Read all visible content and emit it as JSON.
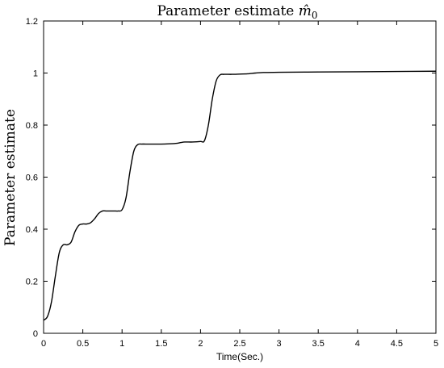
{
  "chart_data": {
    "type": "line",
    "title_main": "Parameter estimate ",
    "title_symbol": "m̂",
    "title_subscript": "0",
    "xlabel": "Time(Sec.)",
    "ylabel": "Parameter estimate",
    "xlim": [
      0,
      5
    ],
    "ylim": [
      0,
      1.2
    ],
    "xticks": [
      "0",
      "0.5",
      "1",
      "1.5",
      "2",
      "2.5",
      "3",
      "3.5",
      "4",
      "4.5",
      "5"
    ],
    "yticks": [
      "0",
      "0.2",
      "0.4",
      "0.6",
      "0.8",
      "1",
      "1.2"
    ],
    "grid": false,
    "series": [
      {
        "color": "#000000",
        "x": [
          0,
          0.05,
          0.1,
          0.15,
          0.2,
          0.25,
          0.3,
          0.35,
          0.4,
          0.45,
          0.5,
          0.55,
          0.6,
          0.65,
          0.7,
          0.75,
          0.8,
          0.85,
          0.9,
          0.95,
          1.0,
          1.05,
          1.1,
          1.15,
          1.2,
          1.25,
          1.3,
          1.4,
          1.5,
          1.6,
          1.7,
          1.75,
          1.8,
          1.9,
          2.0,
          2.05,
          2.1,
          2.15,
          2.2,
          2.25,
          2.3,
          2.4,
          2.5,
          2.6,
          2.7,
          2.8,
          3.0,
          3.5,
          4.0,
          4.5,
          5.0
        ],
        "y": [
          0.05,
          0.065,
          0.12,
          0.22,
          0.31,
          0.34,
          0.34,
          0.35,
          0.39,
          0.415,
          0.42,
          0.42,
          0.425,
          0.44,
          0.46,
          0.47,
          0.47,
          0.47,
          0.47,
          0.47,
          0.475,
          0.52,
          0.62,
          0.7,
          0.725,
          0.727,
          0.727,
          0.727,
          0.727,
          0.728,
          0.73,
          0.733,
          0.735,
          0.735,
          0.737,
          0.74,
          0.8,
          0.9,
          0.97,
          0.993,
          0.995,
          0.995,
          0.996,
          0.997,
          1.0,
          1.002,
          1.003,
          1.004,
          1.005,
          1.006,
          1.007
        ]
      }
    ]
  }
}
